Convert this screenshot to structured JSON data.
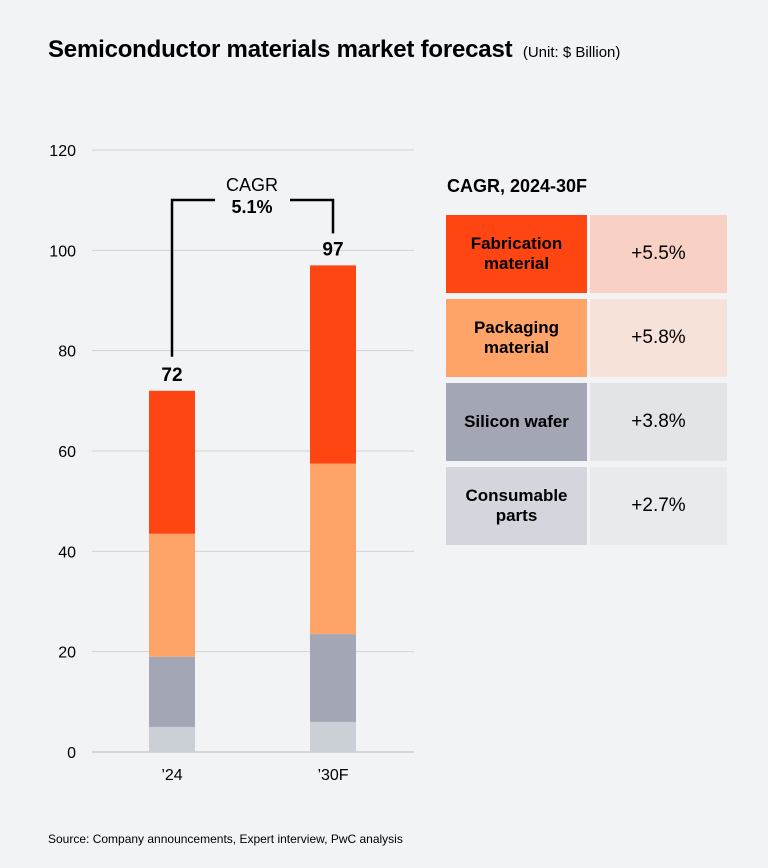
{
  "header": {
    "title": "Semiconductor materials market forecast",
    "unit": "(Unit: $ Billion)"
  },
  "legend": {
    "title": "CAGR, 2024-30F",
    "items": [
      {
        "name": "Fabrication material",
        "value": "+5.5%",
        "color": "#ff4512",
        "value_bg": "#f8d0c4"
      },
      {
        "name": "Packaging material",
        "value": "+5.8%",
        "color": "#ffa468",
        "value_bg": "#f6e2d8"
      },
      {
        "name": "Silicon wafer",
        "value": "+3.8%",
        "color": "#a3a6b4",
        "value_bg": "#e3e4e7"
      },
      {
        "name": "Consumable parts",
        "value": "+2.7%",
        "color": "#d3d6dc",
        "value_bg": "#e9eaed"
      }
    ]
  },
  "chart_data": {
    "type": "bar",
    "stacked": true,
    "categories": [
      "’24",
      "’30F"
    ],
    "series": [
      {
        "name": "Consumable parts",
        "values": [
          5,
          6
        ],
        "color": "#cbd0d6"
      },
      {
        "name": "Silicon wafer",
        "values": [
          14,
          17.5
        ],
        "color": "#a3a6b4"
      },
      {
        "name": "Packaging material",
        "values": [
          24.5,
          34
        ],
        "color": "#ffa468"
      },
      {
        "name": "Fabrication material",
        "values": [
          28.5,
          39.5
        ],
        "color": "#ff4512"
      }
    ],
    "totals": [
      "72",
      "97"
    ],
    "ylim": [
      0,
      120
    ],
    "yticks": [
      "0",
      "20",
      "40",
      "60",
      "80",
      "100",
      "120"
    ],
    "grid": true,
    "cagr_label": "CAGR",
    "cagr_value": "5.1%"
  },
  "footer": {
    "source": "Source: Company announcements, Expert interview, PwC analysis"
  }
}
